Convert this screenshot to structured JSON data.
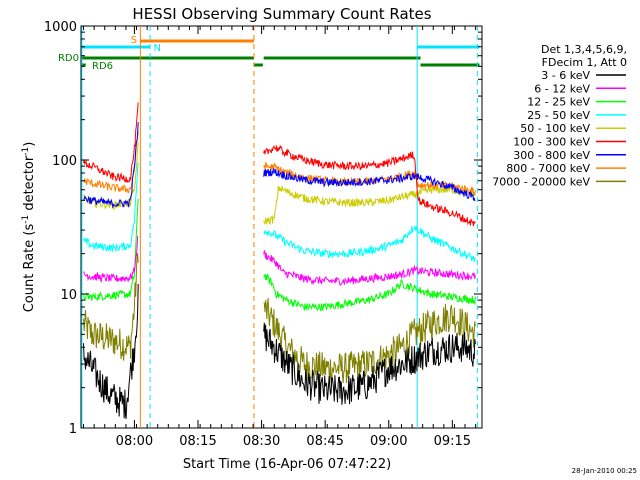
{
  "chart_data": {
    "type": "line",
    "title": "HESSI Observing Summary Count Rates",
    "xlabel": "Start Time (16-Apr-06 07:47:22)",
    "ylabel_main": "Count Rate (s",
    "ylabel_sup1": "-1",
    "ylabel_mid": " detector",
    "ylabel_sup2": "-1",
    "ylabel_end": ")",
    "x_start": "07:47:22",
    "xlim_min": [
      467.4,
      562.0
    ],
    "ylim": [
      1,
      1000
    ],
    "yscale": "log",
    "x_ticks": [
      {
        "label": "08:00",
        "min": 480
      },
      {
        "label": "08:15",
        "min": 495
      },
      {
        "label": "08:30",
        "min": 510
      },
      {
        "label": "08:45",
        "min": 525
      },
      {
        "label": "09:00",
        "min": 540
      },
      {
        "label": "09:15",
        "min": 555
      }
    ],
    "y_ticks": [
      {
        "label": "1",
        "value": 1
      },
      {
        "label": "10",
        "value": 10
      },
      {
        "label": "100",
        "value": 100
      },
      {
        "label": "1000",
        "value": 1000
      }
    ],
    "footer_date": "28-Jan-2010 00:25",
    "legend": {
      "header1": "Det 1,3,4,5,6,9,",
      "header2": "FDecim 1, Att 0",
      "placement": "right"
    },
    "flags": [
      {
        "label": "S",
        "color": "#ff8000"
      },
      {
        "label": "N",
        "color": "#00e5ff"
      },
      {
        "label": "RD0",
        "color": "#008000"
      },
      {
        "label": "RD6",
        "color": "#008000"
      }
    ],
    "series": [
      {
        "name": "3 - 6 keV",
        "color": "#000000",
        "pre": [
          [
            468,
            3.5
          ],
          [
            470,
            2.8
          ],
          [
            472,
            2.2
          ],
          [
            474,
            1.8
          ],
          [
            476,
            1.6
          ],
          [
            478,
            1.5
          ],
          [
            479,
            2.5
          ],
          [
            480,
            4
          ],
          [
            481,
            10
          ]
        ],
        "post": [
          [
            510.5,
            5
          ],
          [
            513,
            4
          ],
          [
            516,
            3
          ],
          [
            520,
            2.2
          ],
          [
            525,
            1.9
          ],
          [
            530,
            1.9
          ],
          [
            535,
            2.1
          ],
          [
            538,
            2.5
          ],
          [
            540,
            2.8
          ],
          [
            543,
            3
          ],
          [
            546,
            3.3
          ],
          [
            550,
            3.8
          ],
          [
            555,
            4
          ],
          [
            558,
            4
          ],
          [
            560.5,
            3.6
          ]
        ]
      },
      {
        "name": "6 - 12 keV",
        "color": "#ff00ff",
        "pre": [
          [
            468,
            14
          ],
          [
            470,
            13.5
          ],
          [
            475,
            13
          ],
          [
            479,
            13.2
          ],
          [
            480,
            15
          ],
          [
            481,
            30
          ]
        ],
        "post": [
          [
            510.5,
            20
          ],
          [
            512.5,
            18
          ],
          [
            513.5,
            17
          ],
          [
            515,
            14.5
          ],
          [
            520,
            13
          ],
          [
            525,
            12.5
          ],
          [
            530,
            12.5
          ],
          [
            535,
            13
          ],
          [
            540,
            13.5
          ],
          [
            543,
            14
          ],
          [
            546,
            15
          ],
          [
            550,
            14.5
          ],
          [
            555,
            14
          ],
          [
            560.5,
            13.5
          ]
        ]
      },
      {
        "name": "12 - 25 keV",
        "color": "#00ff00",
        "pre": [
          [
            468,
            9.5
          ],
          [
            470,
            9.5
          ],
          [
            475,
            9.8
          ],
          [
            479,
            10
          ],
          [
            480,
            14
          ],
          [
            481,
            60
          ]
        ],
        "post": [
          [
            510.5,
            14
          ],
          [
            512.5,
            12
          ],
          [
            513.5,
            10
          ],
          [
            516,
            9
          ],
          [
            520,
            8
          ],
          [
            525,
            8
          ],
          [
            530,
            8.5
          ],
          [
            535,
            9
          ],
          [
            540,
            10
          ],
          [
            543,
            12
          ],
          [
            546,
            11
          ],
          [
            550,
            10
          ],
          [
            555,
            9.5
          ],
          [
            560.5,
            9
          ]
        ]
      },
      {
        "name": "25 - 50 keV",
        "color": "#00ffff",
        "pre": [
          [
            468,
            25
          ],
          [
            470,
            23
          ],
          [
            475,
            22
          ],
          [
            479,
            23
          ],
          [
            480,
            35
          ],
          [
            481,
            110
          ]
        ],
        "post": [
          [
            510.5,
            30
          ],
          [
            513,
            28
          ],
          [
            516,
            24
          ],
          [
            520,
            21
          ],
          [
            525,
            20
          ],
          [
            530,
            20
          ],
          [
            535,
            21
          ],
          [
            538,
            22
          ],
          [
            540,
            23
          ],
          [
            543,
            25
          ],
          [
            546,
            32
          ],
          [
            550,
            26
          ],
          [
            555,
            22
          ],
          [
            560.5,
            18
          ]
        ]
      },
      {
        "name": "50 - 100 keV",
        "color": "#cccc00",
        "pre": [
          [
            468,
            52
          ],
          [
            470,
            48
          ],
          [
            475,
            46
          ],
          [
            479,
            48
          ],
          [
            480,
            60
          ],
          [
            481,
            140
          ]
        ],
        "post": [
          [
            510.5,
            35
          ],
          [
            513,
            36
          ],
          [
            514,
            62
          ],
          [
            516,
            58
          ],
          [
            520,
            52
          ],
          [
            525,
            49
          ],
          [
            530,
            48
          ],
          [
            535,
            48
          ],
          [
            540,
            50
          ],
          [
            543,
            53
          ],
          [
            546,
            55
          ],
          [
            550,
            60
          ],
          [
            555,
            60
          ],
          [
            560.5,
            55
          ]
        ]
      },
      {
        "name": "100 - 300 keV",
        "color": "#ff0000",
        "pre": [
          [
            468,
            95
          ],
          [
            470,
            90
          ],
          [
            475,
            75
          ],
          [
            479,
            72
          ],
          [
            480,
            120
          ],
          [
            481,
            280
          ]
        ],
        "post": [
          [
            510.5,
            110
          ],
          [
            513,
            125
          ],
          [
            516,
            112
          ],
          [
            520,
            100
          ],
          [
            525,
            92
          ],
          [
            530,
            90
          ],
          [
            535,
            90
          ],
          [
            540,
            95
          ],
          [
            543,
            102
          ],
          [
            546,
            110
          ],
          [
            547,
            50
          ],
          [
            550,
            45
          ],
          [
            555,
            40
          ],
          [
            560.5,
            33
          ]
        ]
      },
      {
        "name": "300 - 800 keV",
        "color": "#0000ff",
        "pre": [
          [
            468,
            52
          ],
          [
            470,
            50
          ],
          [
            475,
            47
          ],
          [
            479,
            48
          ],
          [
            480,
            90
          ],
          [
            481,
            200
          ]
        ],
        "post": [
          [
            510.5,
            80
          ],
          [
            513,
            82
          ],
          [
            516,
            76
          ],
          [
            520,
            71
          ],
          [
            525,
            68
          ],
          [
            530,
            68
          ],
          [
            535,
            69
          ],
          [
            540,
            71
          ],
          [
            543,
            73
          ],
          [
            546,
            76
          ],
          [
            550,
            70
          ],
          [
            555,
            62
          ],
          [
            560.5,
            52
          ]
        ]
      },
      {
        "name": "800 - 7000 keV",
        "color": "#ff8000",
        "pre": [
          [
            468,
            70
          ],
          [
            470,
            67
          ],
          [
            475,
            62
          ],
          [
            479,
            60
          ],
          [
            480,
            85
          ],
          [
            481,
            180
          ]
        ],
        "post": [
          [
            510.5,
            90
          ],
          [
            513,
            88
          ],
          [
            516,
            80
          ],
          [
            520,
            74
          ],
          [
            525,
            70
          ],
          [
            530,
            68
          ],
          [
            535,
            69
          ],
          [
            540,
            72
          ],
          [
            543,
            76
          ],
          [
            546,
            80
          ],
          [
            547,
            65
          ],
          [
            550,
            65
          ],
          [
            555,
            64
          ],
          [
            560.5,
            58
          ]
        ]
      },
      {
        "name": "7000 - 20000 keV",
        "color": "#808000",
        "pre": [
          [
            468,
            6
          ],
          [
            470,
            5
          ],
          [
            475,
            4.5
          ],
          [
            479,
            4
          ],
          [
            480,
            8
          ],
          [
            481,
            25
          ]
        ],
        "post": [
          [
            510.5,
            8
          ],
          [
            513,
            6
          ],
          [
            516,
            4
          ],
          [
            520,
            3
          ],
          [
            525,
            2.8
          ],
          [
            530,
            2.8
          ],
          [
            535,
            3
          ],
          [
            540,
            3.5
          ],
          [
            543,
            4
          ],
          [
            546,
            5
          ],
          [
            550,
            6
          ],
          [
            555,
            7
          ],
          [
            560.5,
            5
          ]
        ]
      }
    ]
  }
}
